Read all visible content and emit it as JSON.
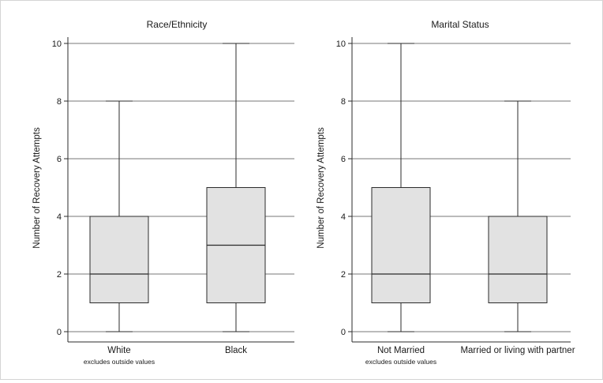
{
  "chart_data": [
    {
      "type": "boxplot",
      "title": "Race/Ethnicity",
      "ylabel": "Number of Recovery Attempts",
      "ylim": [
        0,
        10
      ],
      "yticks": [
        0,
        2,
        4,
        6,
        8,
        10
      ],
      "grid": true,
      "categories": [
        "White",
        "Black"
      ],
      "boxes": [
        {
          "category": "White",
          "min": 0,
          "q1": 1,
          "median": 2,
          "q3": 4,
          "max": 8
        },
        {
          "category": "Black",
          "min": 0,
          "q1": 1,
          "median": 3,
          "q3": 5,
          "max": 10
        }
      ],
      "note": "excludes outside values"
    },
    {
      "type": "boxplot",
      "title": "Marital Status",
      "ylabel": "Number of Recovery Attempts",
      "ylim": [
        0,
        10
      ],
      "yticks": [
        0,
        2,
        4,
        6,
        8,
        10
      ],
      "grid": true,
      "categories": [
        "Not Married",
        "Married or living with partner"
      ],
      "boxes": [
        {
          "category": "Not Married",
          "min": 0,
          "q1": 1,
          "median": 2,
          "q3": 5,
          "max": 10
        },
        {
          "category": "Married or living with partner",
          "min": 0,
          "q1": 1,
          "median": 2,
          "q3": 4,
          "max": 8
        }
      ],
      "note": "excludes outside values"
    }
  ],
  "colors": {
    "box_fill": "#e2e2e2",
    "line": "#2b2b2b",
    "grid": "#777777",
    "text": "#1a1a1a"
  }
}
